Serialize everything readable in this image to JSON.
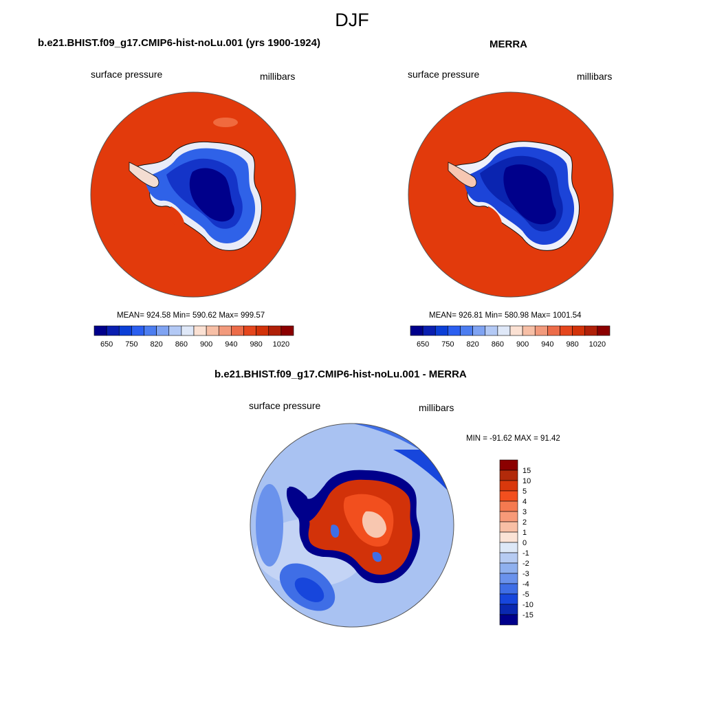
{
  "figure": {
    "title": "DJF"
  },
  "panels": [
    {
      "title": "b.e21.BHIST.f09_g17.CMIP6-hist-noLu.001 (yrs 1900-1924)",
      "left_label": "surface pressure",
      "right_label": "millibars",
      "stats": "MEAN= 924.58  Min= 590.62  Max= 999.57"
    },
    {
      "title": "MERRA",
      "left_label": "surface pressure",
      "right_label": "millibars",
      "stats": "MEAN= 926.81  Min= 580.98  Max= 1001.54"
    },
    {
      "title": "b.e21.BHIST.f09_g17.CMIP6-hist-noLu.001 - MERRA",
      "left_label": "surface pressure",
      "right_label": "millibars",
      "stats": "MIN = -91.62 MAX =  91.42"
    }
  ],
  "colorbar_abs": {
    "tick_labels": [
      "650",
      "750",
      "820",
      "860",
      "900",
      "940",
      "980",
      "1020"
    ],
    "colors": [
      "#00008b",
      "#0a1fb0",
      "#0c3fd6",
      "#2b5ff0",
      "#4c7df0",
      "#7fa3f2",
      "#b3c9f5",
      "#dfe8f8",
      "#fbe1d3",
      "#f7bfa6",
      "#f29a7c",
      "#ec6c49",
      "#e5461d",
      "#d23209",
      "#b02008",
      "#8b0000"
    ]
  },
  "colorbar_diff": {
    "tick_labels": [
      "15",
      "10",
      "5",
      "4",
      "3",
      "2",
      "1",
      "0",
      "-1",
      "-2",
      "-3",
      "-4",
      "-5",
      "-10",
      "-15"
    ],
    "colors": [
      "#8b0000",
      "#b22a0a",
      "#d9380c",
      "#f24f1e",
      "#f57a50",
      "#f79a78",
      "#f8bfa5",
      "#fbe3d6",
      "#dde8f7",
      "#b6cbf2",
      "#8fb0ee",
      "#6a92ec",
      "#3f6ee6",
      "#1746dc",
      "#0a28b0",
      "#00008b"
    ]
  },
  "colors": {
    "ocean_abs": "#e23a0c",
    "land_core": "#00008b",
    "diff_ocean": "#a9c2f2",
    "diff_land": "#d23209"
  }
}
